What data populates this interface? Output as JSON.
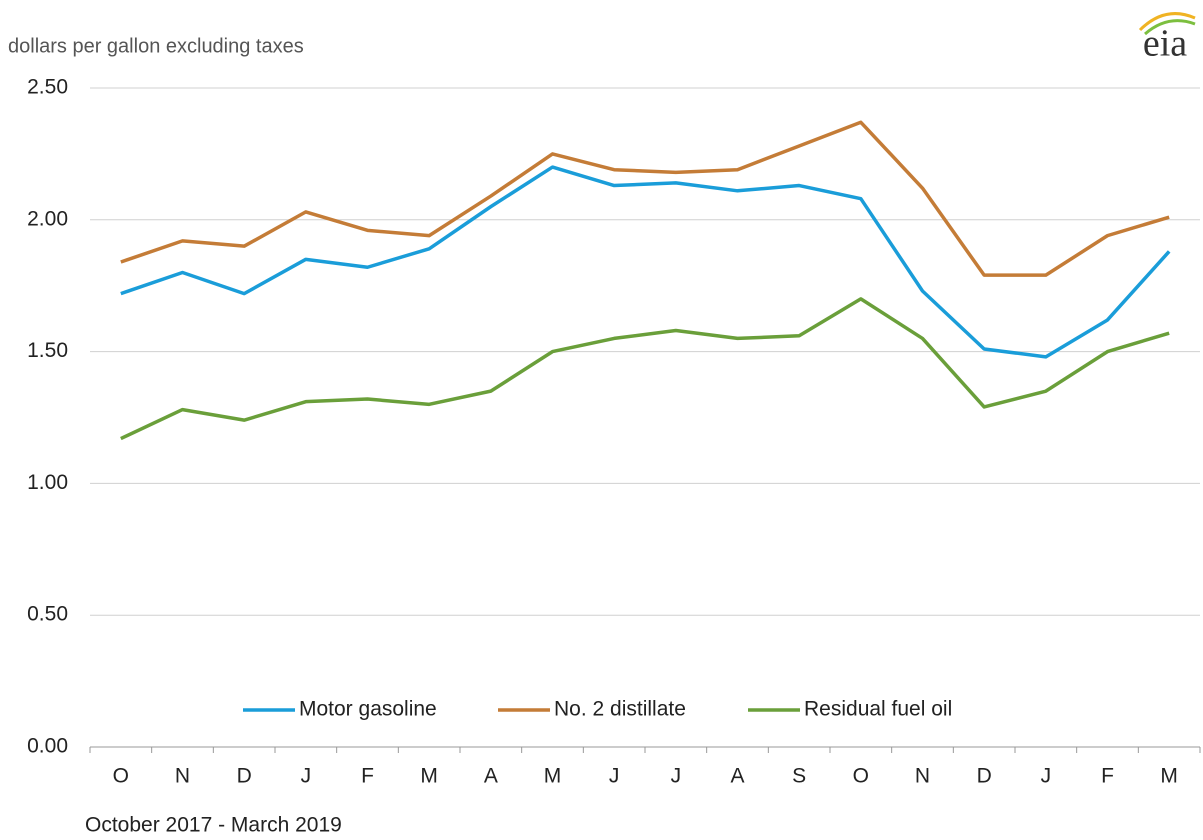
{
  "chart_data": {
    "type": "line",
    "y_axis_label": "dollars per gallon excluding taxes",
    "x_axis_label": "October 2017  -  March 2019",
    "logo": "eia",
    "categories": [
      "O",
      "N",
      "D",
      "J",
      "F",
      "M",
      "A",
      "M",
      "J",
      "J",
      "A",
      "S",
      "O",
      "N",
      "D",
      "J",
      "F",
      "M"
    ],
    "series": [
      {
        "name": "Motor gasoline",
        "color": "#1a9dd9",
        "values": [
          1.72,
          1.8,
          1.72,
          1.85,
          1.82,
          1.89,
          2.05,
          2.2,
          2.13,
          2.14,
          2.11,
          2.13,
          2.08,
          1.73,
          1.51,
          1.48,
          1.62,
          1.88
        ]
      },
      {
        "name": "No. 2 distillate",
        "color": "#c47c37",
        "values": [
          1.84,
          1.92,
          1.9,
          2.03,
          1.96,
          1.94,
          2.09,
          2.25,
          2.19,
          2.18,
          2.19,
          2.28,
          2.37,
          2.12,
          1.79,
          1.79,
          1.94,
          2.01
        ]
      },
      {
        "name": "Residual fuel oil",
        "color": "#6a9f3a",
        "values": [
          1.17,
          1.28,
          1.24,
          1.31,
          1.32,
          1.3,
          1.35,
          1.5,
          1.55,
          1.58,
          1.55,
          1.56,
          1.7,
          1.55,
          1.29,
          1.35,
          1.5,
          1.57
        ]
      }
    ],
    "ylim": [
      0,
      2.5
    ],
    "yticks": [
      {
        "value": 0,
        "label": "0.00"
      },
      {
        "value": 0.5,
        "label": "0.50"
      },
      {
        "value": 1,
        "label": "1.00"
      },
      {
        "value": 1.5,
        "label": "1.50"
      },
      {
        "value": 2,
        "label": "2.00"
      },
      {
        "value": 2.5,
        "label": "2.50"
      }
    ],
    "grid": true,
    "legend": "bottom"
  }
}
